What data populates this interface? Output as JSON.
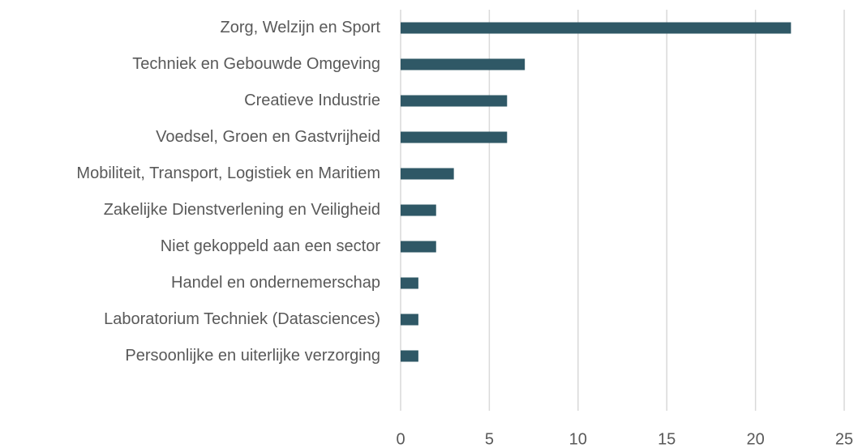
{
  "chart_data": {
    "type": "bar",
    "orientation": "horizontal",
    "categories": [
      "Zorg, Welzijn en Sport",
      "Techniek en Gebouwde Omgeving",
      "Creatieve Industrie",
      "Voedsel, Groen en Gastvrijheid",
      "Mobiliteit, Transport, Logistiek en Maritiem",
      "Zakelijke Dienstverlening en Veiligheid",
      "Niet gekoppeld aan een sector",
      "Handel en ondernemerschap",
      "Laboratorium Techniek (Datasciences)",
      "Persoonlijke en uiterlijke verzorging"
    ],
    "values": [
      22,
      7,
      6,
      6,
      3,
      2,
      2,
      1,
      1,
      1
    ],
    "color": "#2f5866",
    "xlim": [
      0,
      25
    ],
    "xticks": [
      0,
      5,
      10,
      15,
      20,
      25
    ],
    "grid": true
  }
}
